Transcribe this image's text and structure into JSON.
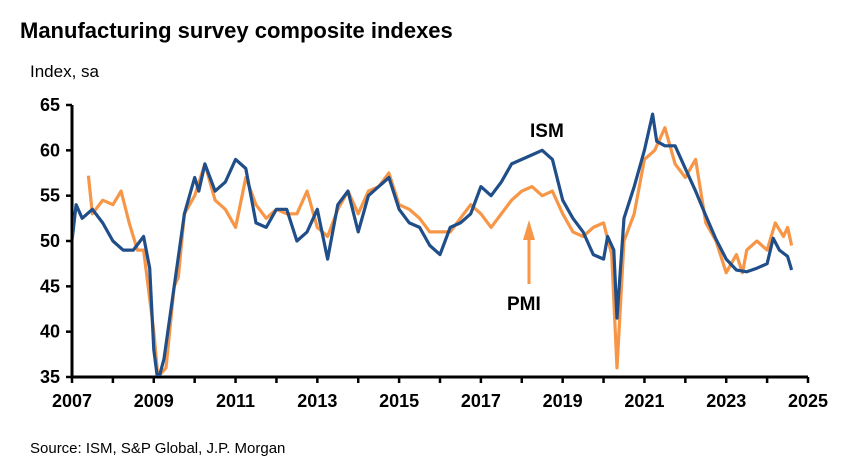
{
  "chart_data": {
    "type": "line",
    "title": "Manufacturing survey composite indexes",
    "ylabel": "Index, sa",
    "source": "Source: ISM, S&P Global, J.P. Morgan",
    "xlim": [
      2007,
      2025
    ],
    "ylim": [
      35,
      65
    ],
    "x_ticks": [
      "2007",
      "2009",
      "2011",
      "2013",
      "2015",
      "2017",
      "2019",
      "2021",
      "2023",
      "2025"
    ],
    "y_ticks": [
      "35",
      "40",
      "45",
      "50",
      "55",
      "60",
      "65"
    ],
    "grid": false,
    "colors": {
      "ISM": "#1f4e89",
      "PMI": "#f79646"
    },
    "annotations": {
      "ism_label": "ISM",
      "pmi_label": "PMI"
    },
    "series": [
      {
        "name": "ISM",
        "x": [
          2007.0,
          2007.1,
          2007.25,
          2007.5,
          2007.75,
          2008.0,
          2008.25,
          2008.5,
          2008.75,
          2008.9,
          2009.0,
          2009.1,
          2009.25,
          2009.5,
          2009.75,
          2010.0,
          2010.1,
          2010.25,
          2010.5,
          2010.75,
          2011.0,
          2011.25,
          2011.5,
          2011.75,
          2012.0,
          2012.25,
          2012.5,
          2012.75,
          2013.0,
          2013.25,
          2013.5,
          2013.75,
          2014.0,
          2014.25,
          2014.5,
          2014.75,
          2015.0,
          2015.25,
          2015.5,
          2015.75,
          2016.0,
          2016.25,
          2016.5,
          2016.75,
          2017.0,
          2017.25,
          2017.5,
          2017.75,
          2018.0,
          2018.25,
          2018.5,
          2018.75,
          2019.0,
          2019.25,
          2019.5,
          2019.75,
          2020.0,
          2020.1,
          2020.25,
          2020.33,
          2020.5,
          2020.75,
          2021.0,
          2021.2,
          2021.3,
          2021.5,
          2021.75,
          2022.0,
          2022.25,
          2022.5,
          2022.75,
          2023.0,
          2023.25,
          2023.5,
          2023.75,
          2024.0,
          2024.15,
          2024.3,
          2024.5,
          2024.6
        ],
        "values": [
          50,
          54,
          52.5,
          53.5,
          52,
          50,
          49,
          49,
          50.5,
          47,
          38,
          34.5,
          37,
          45,
          53,
          57,
          55.5,
          58.5,
          55.5,
          56.5,
          59,
          58,
          52,
          51.5,
          53.5,
          53.5,
          50,
          51,
          53.5,
          48,
          54,
          55.5,
          51,
          55,
          56,
          57,
          53.5,
          52,
          51.5,
          49.5,
          48.5,
          51.5,
          52,
          53,
          56,
          55,
          56.5,
          58.5,
          59,
          59.5,
          60,
          59,
          54.5,
          52.5,
          51,
          48.5,
          48,
          50.5,
          49,
          41.5,
          52.5,
          56,
          60,
          64,
          61,
          60.5,
          60.5,
          58,
          55.5,
          52.8,
          50.2,
          48,
          46.8,
          46.6,
          47,
          47.5,
          50.3,
          49,
          48.3,
          46.8
        ]
      },
      {
        "name": "PMI",
        "x": [
          2007.4,
          2007.5,
          2007.75,
          2008.0,
          2008.2,
          2008.4,
          2008.6,
          2008.75,
          2009.0,
          2009.1,
          2009.3,
          2009.5,
          2009.6,
          2009.75,
          2010.0,
          2010.25,
          2010.5,
          2010.75,
          2011.0,
          2011.25,
          2011.5,
          2011.75,
          2012.0,
          2012.25,
          2012.5,
          2012.75,
          2013.0,
          2013.25,
          2013.5,
          2013.75,
          2014.0,
          2014.25,
          2014.5,
          2014.75,
          2015.0,
          2015.25,
          2015.5,
          2015.75,
          2016.0,
          2016.25,
          2016.5,
          2016.75,
          2017.0,
          2017.25,
          2017.5,
          2017.75,
          2018.0,
          2018.25,
          2018.5,
          2018.75,
          2019.0,
          2019.25,
          2019.5,
          2019.75,
          2020.0,
          2020.2,
          2020.33,
          2020.5,
          2020.75,
          2021.0,
          2021.25,
          2021.5,
          2021.75,
          2022.0,
          2022.25,
          2022.5,
          2022.75,
          2023.0,
          2023.25,
          2023.4,
          2023.5,
          2023.75,
          2024.0,
          2024.2,
          2024.4,
          2024.5,
          2024.6
        ],
        "values": [
          57.2,
          53,
          54.5,
          54,
          55.5,
          52,
          49,
          49,
          40,
          35,
          36,
          45,
          46,
          53,
          55,
          58.5,
          54.5,
          53.5,
          51.5,
          57,
          54,
          52.5,
          53.5,
          53,
          53,
          55.5,
          51.5,
          50.5,
          53.5,
          55.5,
          53,
          55.5,
          56,
          57.5,
          54,
          53.5,
          52.5,
          51,
          51,
          51,
          52.5,
          54,
          53,
          51.5,
          53,
          54.5,
          55.5,
          56,
          55,
          55.5,
          53,
          51,
          50.5,
          51.5,
          52,
          48.5,
          36,
          50,
          53,
          59,
          60,
          62.5,
          58.5,
          57,
          59,
          52,
          50,
          46.5,
          48.5,
          46.5,
          49,
          50,
          49,
          52,
          50.5,
          51.5,
          49.5
        ]
      }
    ]
  }
}
